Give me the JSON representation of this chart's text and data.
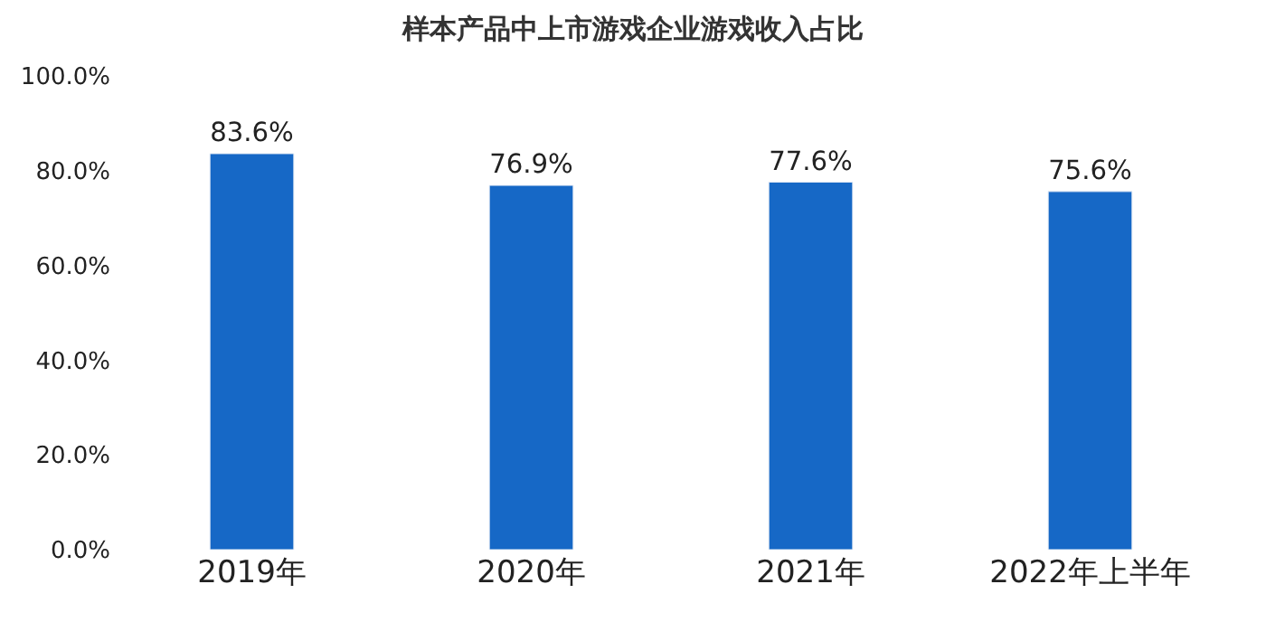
{
  "chart_data": {
    "type": "bar",
    "title": "样本产品中上市游戏企业游戏收入占比",
    "categories": [
      "2019年",
      "2020年",
      "2021年",
      "2022年上半年"
    ],
    "values": [
      83.6,
      76.9,
      77.6,
      75.6
    ],
    "value_labels": [
      "83.6%",
      "76.9%",
      "77.6%",
      "75.6%"
    ],
    "color": "#1668c6",
    "ylim": [
      0,
      100
    ],
    "yticks": [
      {
        "value": 0,
        "label": "0.0%"
      },
      {
        "value": 20,
        "label": "20.0%"
      },
      {
        "value": 40,
        "label": "40.0%"
      },
      {
        "value": 60,
        "label": "60.0%"
      },
      {
        "value": 80,
        "label": "80.0%"
      },
      {
        "value": 100,
        "label": "100.0%"
      }
    ],
    "legend": false
  }
}
